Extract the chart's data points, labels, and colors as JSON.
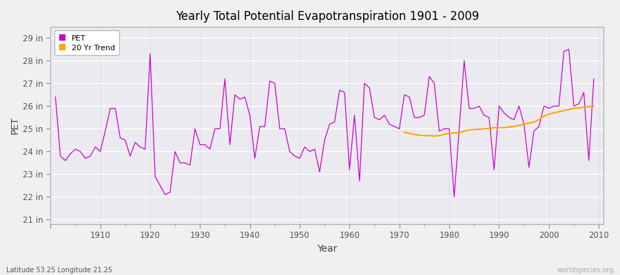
{
  "title": "Yearly Total Potential Evapotranspiration 1901 - 2009",
  "xlabel": "Year",
  "ylabel": "PET",
  "footnote_left": "Latitude 53.25 Longitude 21.25",
  "footnote_right": "worldspecies.org",
  "pet_color": "#CC00CC",
  "trend_color": "#FFA500",
  "background_color": "#F0F0F0",
  "plot_bg_color": "#EAEAF0",
  "ylim": [
    20.8,
    29.5
  ],
  "yticks": [
    21,
    22,
    23,
    24,
    25,
    26,
    27,
    28,
    29
  ],
  "xlim": [
    1900,
    2011
  ],
  "years": [
    1901,
    1902,
    1903,
    1904,
    1905,
    1906,
    1907,
    1908,
    1909,
    1910,
    1911,
    1912,
    1913,
    1914,
    1915,
    1916,
    1917,
    1918,
    1919,
    1920,
    1921,
    1922,
    1923,
    1924,
    1925,
    1926,
    1927,
    1928,
    1929,
    1930,
    1931,
    1932,
    1933,
    1934,
    1935,
    1936,
    1937,
    1938,
    1939,
    1940,
    1941,
    1942,
    1943,
    1944,
    1945,
    1946,
    1947,
    1948,
    1949,
    1950,
    1951,
    1952,
    1953,
    1954,
    1955,
    1956,
    1957,
    1958,
    1959,
    1960,
    1961,
    1962,
    1963,
    1964,
    1965,
    1966,
    1967,
    1968,
    1969,
    1970,
    1971,
    1972,
    1973,
    1974,
    1975,
    1976,
    1977,
    1978,
    1979,
    1980,
    1981,
    1982,
    1983,
    1984,
    1985,
    1986,
    1987,
    1988,
    1989,
    1990,
    1991,
    1992,
    1993,
    1994,
    1995,
    1996,
    1997,
    1998,
    1999,
    2000,
    2001,
    2002,
    2003,
    2004,
    2005,
    2006,
    2007,
    2008,
    2009
  ],
  "pet": [
    26.4,
    23.8,
    23.6,
    23.9,
    24.1,
    24.0,
    23.7,
    23.8,
    24.2,
    24.0,
    24.9,
    25.9,
    25.9,
    24.6,
    24.5,
    23.8,
    24.4,
    24.2,
    24.1,
    28.3,
    22.9,
    22.5,
    22.1,
    22.2,
    24.0,
    23.5,
    23.5,
    23.4,
    25.0,
    24.3,
    24.3,
    24.1,
    25.0,
    25.0,
    27.2,
    24.3,
    26.5,
    26.3,
    26.4,
    25.6,
    23.7,
    25.1,
    25.1,
    27.1,
    27.0,
    25.0,
    25.0,
    24.0,
    23.8,
    23.7,
    24.2,
    24.0,
    24.1,
    23.1,
    24.5,
    25.2,
    25.3,
    26.7,
    26.6,
    23.2,
    25.6,
    22.7,
    27.0,
    26.8,
    25.5,
    25.4,
    25.6,
    25.2,
    25.1,
    25.0,
    26.5,
    26.4,
    25.5,
    25.5,
    25.6,
    27.3,
    27.0,
    24.9,
    25.0,
    25.0,
    22.0,
    25.0,
    28.0,
    25.9,
    25.9,
    26.0,
    25.6,
    25.5,
    23.2,
    26.0,
    25.7,
    25.5,
    25.4,
    26.0,
    25.2,
    23.3,
    24.9,
    25.1,
    26.0,
    25.9,
    26.0,
    26.0,
    28.4,
    28.5,
    26.0,
    26.1,
    26.6,
    23.6,
    27.2
  ],
  "trend_start_year": 1971,
  "trend": [
    24.85,
    24.8,
    24.75,
    24.72,
    24.7,
    24.7,
    24.68,
    24.7,
    24.75,
    24.8,
    24.82,
    24.83,
    24.9,
    24.95,
    24.97,
    24.98,
    25.0,
    25.02,
    25.05,
    25.05,
    25.05,
    25.08,
    25.1,
    25.15,
    25.2,
    25.25,
    25.3,
    25.4,
    25.55,
    25.65,
    25.7,
    25.75,
    25.8,
    25.85,
    25.9,
    25.92,
    25.95,
    25.97,
    26.0
  ]
}
